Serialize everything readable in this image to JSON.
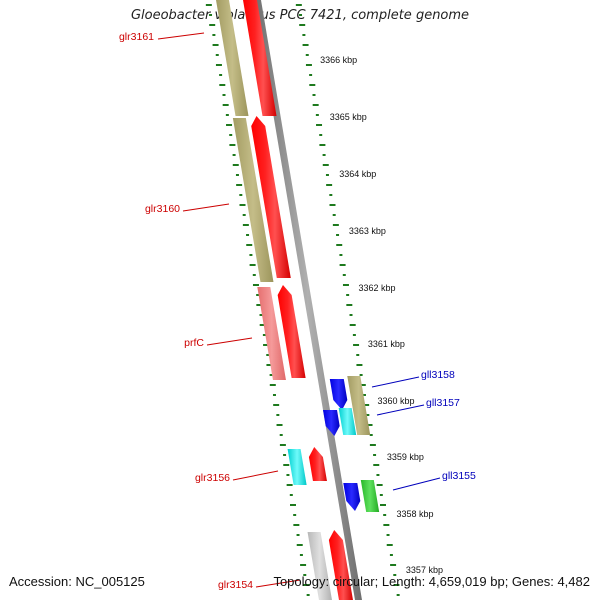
{
  "title": "Gloeobacter violaceus PCC 7421, complete genome",
  "footer": {
    "accession": "Accession: NC_005125",
    "summary": "Topology: circular; Length: 4,659,019 bp; Genes: 4,482"
  },
  "colors": {
    "backbone": "#8c8c8c",
    "ruler_ticks": "#1e7a1e",
    "gene_label_reverse": "#cc0000",
    "gene_label_forward": "#0000bb",
    "cds_reverse": "#ff0000",
    "cds_forward": "#0000ff",
    "cog_olive": "#b5ae78",
    "cog_pink": "#f08080",
    "cog_cyan": "#00e5e5",
    "cog_green": "#33cc33",
    "cog_gray": "#c8c8c8"
  },
  "ruler": {
    "unit": "kbp",
    "labels": [
      "3366 kbp",
      "3365 kbp",
      "3364 kbp",
      "3363 kbp",
      "3362 kbp",
      "3361 kbp",
      "3360 kbp",
      "3359 kbp",
      "3358 kbp",
      "3357 kbp"
    ]
  },
  "genes": [
    {
      "name": "glr3161",
      "strand": "reverse",
      "cds_color": "cds_reverse",
      "cog_color": "cog_olive",
      "labeled": true
    },
    {
      "name": "glr3160",
      "strand": "reverse",
      "cds_color": "cds_reverse",
      "cog_color": "cog_olive",
      "labeled": true
    },
    {
      "name": "prfC",
      "strand": "reverse",
      "cds_color": "cds_reverse",
      "cog_color": "cog_pink",
      "labeled": true
    },
    {
      "name": "gll3158",
      "strand": "forward",
      "cds_color": "cds_forward",
      "cog_color": "cog_olive",
      "labeled": true
    },
    {
      "name": "gll3157",
      "strand": "forward",
      "cds_color": "cds_forward",
      "cog_color": "cog_cyan",
      "labeled": true
    },
    {
      "name": "glr3156",
      "strand": "reverse",
      "cds_color": "cds_reverse",
      "cog_color": "cog_cyan",
      "labeled": true
    },
    {
      "name": "gll3155",
      "strand": "forward",
      "cds_color": "cds_forward",
      "cog_color": "cog_green",
      "labeled": true
    },
    {
      "name": "glr3154",
      "strand": "reverse",
      "cds_color": "cds_reverse",
      "cog_color": "cog_gray",
      "labeled": true
    }
  ]
}
